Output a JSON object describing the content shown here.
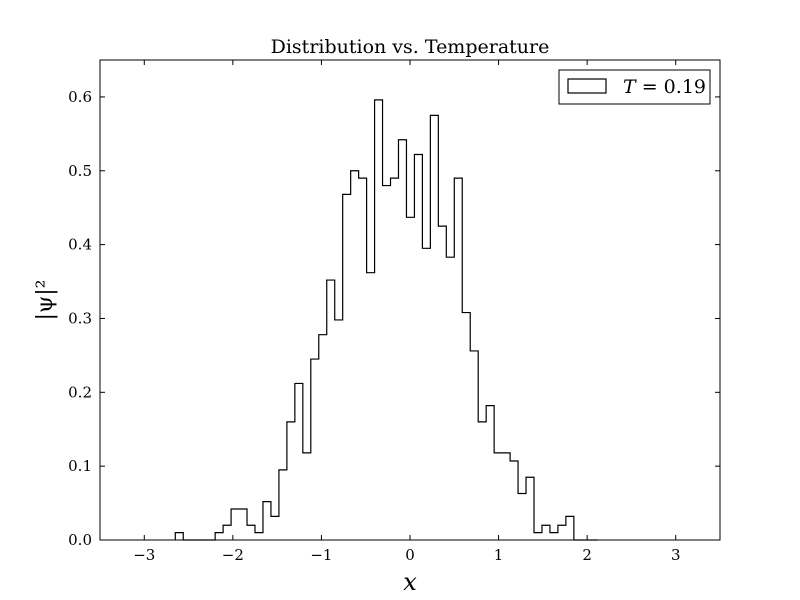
{
  "chart_data": {
    "type": "histogram",
    "title": "Distribution vs. Temperature",
    "xlabel": "x",
    "ylabel": "|ψ|²",
    "xlim": [
      -3.5,
      3.5
    ],
    "ylim": [
      0,
      0.65
    ],
    "xticks": [
      -3,
      -2,
      -1,
      0,
      1,
      2,
      3
    ],
    "xtick_labels": [
      "−3",
      "−2",
      "−1",
      "0",
      "1",
      "2",
      "3"
    ],
    "yticks": [
      0.0,
      0.1,
      0.2,
      0.3,
      0.4,
      0.5,
      0.6
    ],
    "ytick_labels": [
      "0.0",
      "0.1",
      "0.2",
      "0.3",
      "0.4",
      "0.5",
      "0.6"
    ],
    "grid": false,
    "legend_position": "top-right",
    "series": [
      {
        "name": "T = 0.19",
        "legend_italic_part": "T",
        "legend_rest": " = 0.19",
        "style": "step",
        "color": "#000000",
        "bin_edges": [
          -2.65,
          -2.56,
          -2.47,
          -2.38,
          -2.29,
          -2.2,
          -2.11,
          -2.02,
          -1.93,
          -1.84,
          -1.75,
          -1.66,
          -1.57,
          -1.48,
          -1.39,
          -1.3,
          -1.21,
          -1.12,
          -1.03,
          -0.94,
          -0.85,
          -0.76,
          -0.67,
          -0.58,
          -0.49,
          -0.4,
          -0.31,
          -0.22,
          -0.13,
          -0.04,
          0.05,
          0.14,
          0.23,
          0.32,
          0.41,
          0.5,
          0.59,
          0.68,
          0.77,
          0.86,
          0.95,
          1.04,
          1.13,
          1.22,
          1.31,
          1.4,
          1.49,
          1.58,
          1.67,
          1.76,
          1.85,
          1.94,
          2.03,
          2.12
        ],
        "values": [
          0.01,
          0.0,
          0.0,
          0.0,
          0.0,
          0.01,
          0.02,
          0.042,
          0.042,
          0.02,
          0.01,
          0.052,
          0.032,
          0.095,
          0.16,
          0.212,
          0.118,
          0.245,
          0.278,
          0.352,
          0.298,
          0.468,
          0.5,
          0.49,
          0.362,
          0.596,
          0.48,
          0.49,
          0.542,
          0.437,
          0.522,
          0.395,
          0.575,
          0.425,
          0.383,
          0.49,
          0.308,
          0.256,
          0.16,
          0.182,
          0.118,
          0.118,
          0.107,
          0.063,
          0.085,
          0.01,
          0.02,
          0.01,
          0.02,
          0.032,
          0.0,
          0.0,
          0.0
        ]
      }
    ]
  }
}
